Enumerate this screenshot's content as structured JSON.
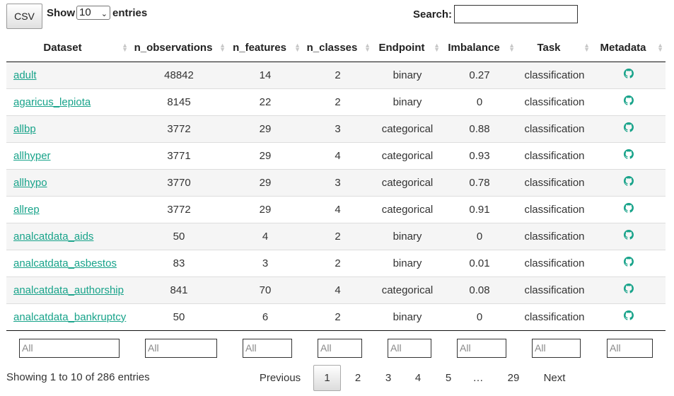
{
  "toolbar": {
    "csv_label": "CSV"
  },
  "length": {
    "show_label": "Show",
    "value": "10",
    "entries_label": "entries"
  },
  "search": {
    "label": "Search:",
    "value": ""
  },
  "columns": [
    "Dataset",
    "n_observations",
    "n_features",
    "n_classes",
    "Endpoint",
    "Imbalance",
    "Task",
    "Metadata"
  ],
  "rows": [
    {
      "dataset": "adult",
      "n_observations": "48842",
      "n_features": "14",
      "n_classes": "2",
      "endpoint": "binary",
      "imbalance": "0.27",
      "task": "classification"
    },
    {
      "dataset": "agaricus_lepiota",
      "n_observations": "8145",
      "n_features": "22",
      "n_classes": "2",
      "endpoint": "binary",
      "imbalance": "0",
      "task": "classification"
    },
    {
      "dataset": "allbp",
      "n_observations": "3772",
      "n_features": "29",
      "n_classes": "3",
      "endpoint": "categorical",
      "imbalance": "0.88",
      "task": "classification"
    },
    {
      "dataset": "allhyper",
      "n_observations": "3771",
      "n_features": "29",
      "n_classes": "4",
      "endpoint": "categorical",
      "imbalance": "0.93",
      "task": "classification"
    },
    {
      "dataset": "allhypo",
      "n_observations": "3770",
      "n_features": "29",
      "n_classes": "3",
      "endpoint": "categorical",
      "imbalance": "0.78",
      "task": "classification"
    },
    {
      "dataset": "allrep",
      "n_observations": "3772",
      "n_features": "29",
      "n_classes": "4",
      "endpoint": "categorical",
      "imbalance": "0.91",
      "task": "classification"
    },
    {
      "dataset": "analcatdata_aids",
      "n_observations": "50",
      "n_features": "4",
      "n_classes": "2",
      "endpoint": "binary",
      "imbalance": "0",
      "task": "classification"
    },
    {
      "dataset": "analcatdata_asbestos",
      "n_observations": "83",
      "n_features": "3",
      "n_classes": "2",
      "endpoint": "binary",
      "imbalance": "0.01",
      "task": "classification"
    },
    {
      "dataset": "analcatdata_authorship",
      "n_observations": "841",
      "n_features": "70",
      "n_classes": "4",
      "endpoint": "categorical",
      "imbalance": "0.08",
      "task": "classification"
    },
    {
      "dataset": "analcatdata_bankruptcy",
      "n_observations": "50",
      "n_features": "6",
      "n_classes": "2",
      "endpoint": "binary",
      "imbalance": "0",
      "task": "classification"
    }
  ],
  "metadata_icon": "github-icon",
  "filters": {
    "placeholder": "All"
  },
  "info": "Showing 1 to 10 of 286 entries",
  "pagination": {
    "previous": "Previous",
    "pages": [
      "1",
      "2",
      "3",
      "4",
      "5",
      "…",
      "29"
    ],
    "current": "1",
    "next": "Next"
  },
  "colors": {
    "link": "#18a38a",
    "icon": "#18a38a",
    "stripe": "#f5f5f5"
  }
}
